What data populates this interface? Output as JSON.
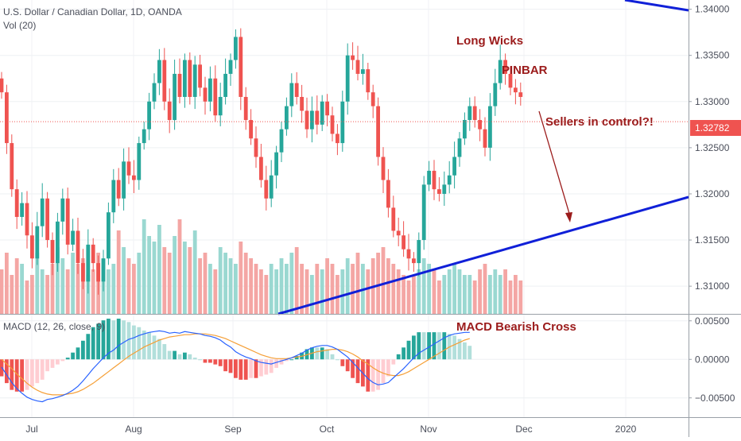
{
  "header": {
    "symbol": "U.S. Dollar / Canadian Dollar, 1D, OANDA",
    "volume": "Vol (20)",
    "macd": "MACD (12, 26, close, 9)"
  },
  "annotations": {
    "long_wicks": "Long Wicks",
    "pinbar": "PINBAR",
    "sellers": "Sellers in control?!",
    "macd_cross": "MACD Bearish Cross"
  },
  "price_label": "1.32782",
  "colors": {
    "up": "#26a69a",
    "down": "#ef5350",
    "vol_up": "#9ad8d1",
    "vol_down": "#f4a6a4",
    "trendline": "#1020d8",
    "annotation": "#9b1b1b",
    "macd_line": "#2962ff",
    "signal_line": "#f59f36"
  },
  "chart_data": [
    {
      "type": "candlestick",
      "title": "U.S. Dollar / Canadian Dollar, 1D, OANDA",
      "x_tick_labels": [
        "Jul",
        "Aug",
        "Sep",
        "Oct",
        "Nov",
        "Dec",
        "2020"
      ],
      "y_tick_labels": [
        "1.34000",
        "1.33500",
        "1.33000",
        "1.32500",
        "1.32000",
        "1.31500",
        "1.31000"
      ],
      "ylim": [
        1.307,
        1.341
      ],
      "last_price": 1.32782,
      "series": [
        {
          "name": "closes",
          "values": [
            1.331,
            1.3255,
            1.3205,
            1.3175,
            1.319,
            1.3155,
            1.313,
            1.3165,
            1.3195,
            1.315,
            1.3125,
            1.317,
            1.3195,
            1.3145,
            1.316,
            1.3125,
            1.3105,
            1.3145,
            1.3125,
            1.3105,
            1.313,
            1.318,
            1.3215,
            1.3195,
            1.3235,
            1.322,
            1.3215,
            1.3255,
            1.327,
            1.33,
            1.332,
            1.3345,
            1.33,
            1.328,
            1.333,
            1.3305,
            1.3345,
            1.3305,
            1.334,
            1.3315,
            1.33,
            1.3325,
            1.3285,
            1.3305,
            1.333,
            1.3345,
            1.337,
            1.3305,
            1.328,
            1.326,
            1.324,
            1.3215,
            1.3195,
            1.322,
            1.3245,
            1.327,
            1.3295,
            1.332,
            1.3305,
            1.329,
            1.327,
            1.329,
            1.3275,
            1.33,
            1.3285,
            1.3265,
            1.3255,
            1.33,
            1.335,
            1.3345,
            1.333,
            1.3335,
            1.331,
            1.3295,
            1.324,
            1.3215,
            1.3185,
            1.316,
            1.3155,
            1.314,
            1.313,
            1.3125,
            1.315,
            1.321,
            1.3225,
            1.3205,
            1.32,
            1.321,
            1.322,
            1.324,
            1.326,
            1.328,
            1.3295,
            1.328,
            1.327,
            1.325,
            1.3295,
            1.332,
            1.3345,
            1.333,
            1.3315,
            1.331,
            1.3305
          ]
        }
      ]
    },
    {
      "type": "bar",
      "title": "Vol (20)",
      "series": [
        {
          "name": "volume",
          "values": [
            40,
            55,
            35,
            50,
            45,
            30,
            35,
            55,
            40,
            35,
            45,
            60,
            50,
            40,
            55,
            45,
            50,
            35,
            40,
            55,
            50,
            40,
            45,
            75,
            60,
            50,
            45,
            55,
            85,
            70,
            65,
            80,
            60,
            55,
            70,
            85,
            65,
            60,
            75,
            50,
            55,
            45,
            40,
            60,
            55,
            50,
            45,
            65,
            55,
            50,
            45,
            40,
            35,
            45,
            40,
            50,
            45,
            55,
            60,
            45,
            40,
            35,
            45,
            40,
            50,
            45,
            35,
            40,
            50,
            45,
            55,
            45,
            40,
            50,
            55,
            60,
            50,
            45,
            40,
            35,
            30,
            35,
            40,
            50,
            45,
            40,
            30,
            35,
            40,
            45,
            40,
            35,
            35,
            30,
            40,
            45,
            35,
            40,
            35,
            40,
            30,
            35,
            30
          ]
        }
      ]
    },
    {
      "type": "line",
      "title": "MACD (12, 26, close, 9)",
      "y_tick_labels": [
        "0.00500",
        "0.00000",
        "−0.00500"
      ],
      "ylim": [
        -0.0075,
        0.0058
      ],
      "series": [
        {
          "name": "macd",
          "values": [
            -0.001,
            -0.002,
            -0.003,
            -0.0038,
            -0.0044,
            -0.0049,
            -0.0052,
            -0.0054,
            -0.0055,
            -0.0052,
            -0.0051,
            -0.0049,
            -0.0047,
            -0.0044,
            -0.004,
            -0.0035,
            -0.0028,
            -0.002,
            -0.0012,
            -0.0005,
            0.0002,
            0.0008,
            0.0012,
            0.0018,
            0.0022,
            0.0026,
            0.0028,
            0.0031,
            0.0033,
            0.0035,
            0.0036,
            0.0037,
            0.0036,
            0.0034,
            0.0035,
            0.0034,
            0.0036,
            0.0035,
            0.0034,
            0.0033,
            0.0031,
            0.003,
            0.0028,
            0.0025,
            0.002,
            0.0016,
            0.001,
            0.0006,
            0.0003,
            0.0001,
            -0.0002,
            -0.0004,
            -0.0005,
            -0.0006,
            -0.0004,
            -0.0002,
            0.0,
            0.0002,
            0.0005,
            0.0008,
            0.0012,
            0.0015,
            0.0017,
            0.0018,
            0.0018,
            0.0016,
            0.0013,
            0.0008,
            0.0003,
            -0.0004,
            -0.0011,
            -0.0018,
            -0.0025,
            -0.003,
            -0.0033,
            -0.0032,
            -0.003,
            -0.0024,
            -0.0018,
            -0.0012,
            -0.0005,
            0.0002,
            0.0008,
            0.0012,
            0.0016,
            0.002,
            0.0024,
            0.0028,
            0.0031,
            0.0033,
            0.0034,
            0.0035,
            0.0035
          ]
        },
        {
          "name": "signal",
          "values": [
            0.0,
            -0.0006,
            -0.0012,
            -0.0019,
            -0.0025,
            -0.0031,
            -0.0036,
            -0.004,
            -0.0043,
            -0.0045,
            -0.0046,
            -0.0046,
            -0.0046,
            -0.0045,
            -0.0044,
            -0.0042,
            -0.0039,
            -0.0035,
            -0.0031,
            -0.0026,
            -0.0021,
            -0.0016,
            -0.0011,
            -0.0006,
            -0.0001,
            0.0004,
            0.0008,
            0.0012,
            0.0016,
            0.0019,
            0.0022,
            0.0025,
            0.0027,
            0.0029,
            0.003,
            0.0031,
            0.0032,
            0.0032,
            0.0033,
            0.0033,
            0.0033,
            0.0032,
            0.0031,
            0.0029,
            0.0027,
            0.0024,
            0.0021,
            0.0018,
            0.0015,
            0.0012,
            0.0009,
            0.0006,
            0.0004,
            0.0002,
            0.0001,
            0.0001,
            0.0001,
            0.0002,
            0.0003,
            0.0004,
            0.0006,
            0.0008,
            0.001,
            0.0011,
            0.0012,
            0.0013,
            0.0013,
            0.0012,
            0.001,
            0.0007,
            0.0003,
            -0.0002,
            -0.0006,
            -0.0011,
            -0.0015,
            -0.0018,
            -0.002,
            -0.0021,
            -0.0021,
            -0.0019,
            -0.0016,
            -0.0012,
            -0.0008,
            -0.0004,
            0.0,
            0.0004,
            0.0008,
            0.0012,
            0.0016,
            0.0019,
            0.0022,
            0.0025,
            0.0027
          ]
        }
      ]
    }
  ]
}
